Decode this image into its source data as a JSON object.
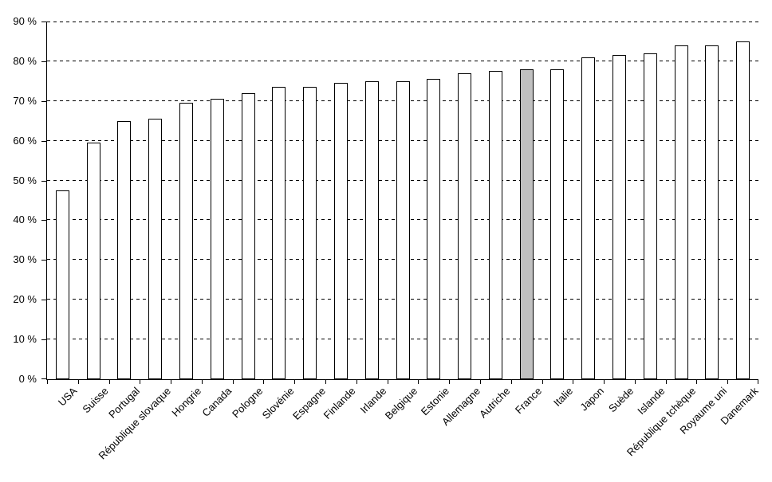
{
  "chart_data": {
    "type": "bar",
    "title": "",
    "xlabel": "",
    "ylabel": "",
    "categories": [
      "USA",
      "Suisse",
      "Portugal",
      "République slovaque",
      "Hongrie",
      "Canada",
      "Pologne",
      "Slovénie",
      "Espagne",
      "Finlande",
      "Irlande",
      "Belgique",
      "Estonie",
      "Allemagne",
      "Autriche",
      "France",
      "Italie",
      "Japon",
      "Suède",
      "Islande",
      "République tchèque",
      "Royaume uni",
      "Danemark"
    ],
    "values": [
      47.5,
      59.5,
      65,
      65.5,
      69.5,
      70.5,
      72,
      73.5,
      73.5,
      74.5,
      75,
      75,
      75.5,
      77,
      77.5,
      78,
      78,
      81,
      81.5,
      82,
      84,
      84,
      85
    ],
    "unit": "%",
    "ylim": [
      0,
      90
    ],
    "ytick_step": 10,
    "ytick_labels": [
      "0 %",
      "10 %",
      "20 %",
      "30 %",
      "40 %",
      "50 %",
      "60 %",
      "70 %",
      "80 %",
      "90 %"
    ],
    "grid": "horizontal-dashed",
    "legend": "none",
    "bar_fill": "#ffffff",
    "bar_border": "#000000",
    "highlight_category": "France",
    "highlight_color": "#c0c0c0",
    "axis_color": "#000000",
    "background": "#ffffff",
    "x_label_rotation_deg": 45
  }
}
